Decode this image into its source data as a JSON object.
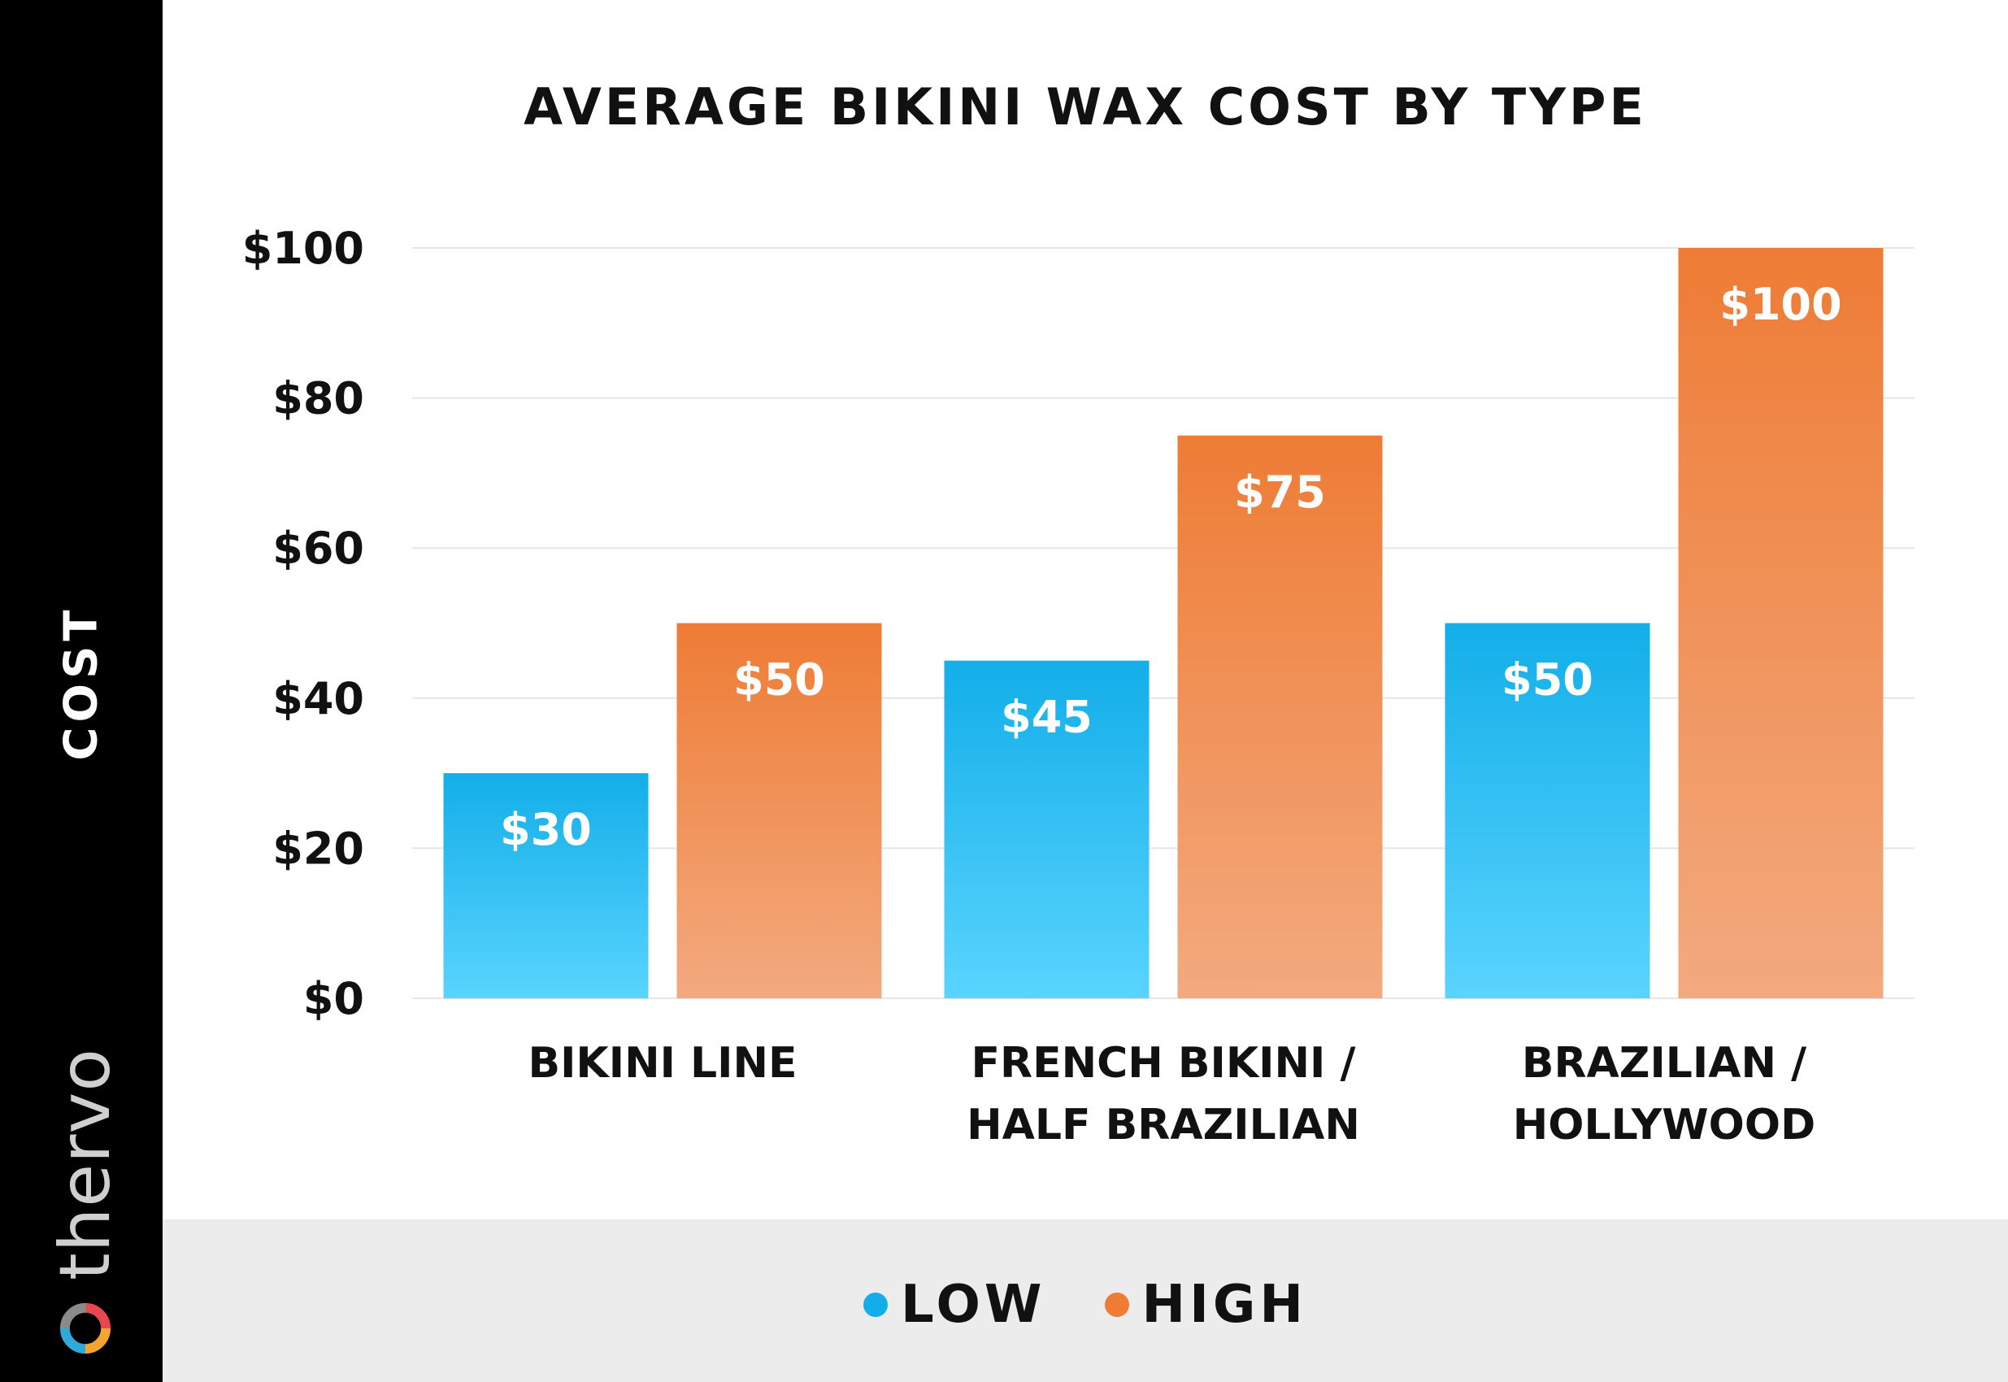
{
  "brand": {
    "name": "thervo",
    "logo_icon": "thervo-logo-icon"
  },
  "legend": {
    "items": [
      {
        "label": "LOW",
        "color": "#13aee9"
      },
      {
        "label": "HIGH",
        "color": "#ee7c35"
      }
    ]
  },
  "chart_data": {
    "type": "bar",
    "title": "AVERAGE BIKINI WAX COST BY TYPE",
    "xlabel": "",
    "ylabel": "COST",
    "categories": [
      [
        "BIKINI LINE"
      ],
      [
        "FRENCH BIKINI /",
        "HALF BRAZILIAN"
      ],
      [
        "BRAZILIAN /",
        "HOLLYWOOD"
      ]
    ],
    "series": [
      {
        "name": "LOW",
        "values": [
          30,
          45,
          50
        ],
        "labels": [
          "$30",
          "$45",
          "$50"
        ],
        "color": "#13aee9",
        "color_light": "#59d4fe"
      },
      {
        "name": "HIGH",
        "values": [
          50,
          75,
          100
        ],
        "labels": [
          "$50",
          "$75",
          "$100"
        ],
        "color": "#ee7c35",
        "color_light": "#f3aa7f"
      }
    ],
    "ylim": [
      0,
      100
    ],
    "yticks": [
      0,
      20,
      40,
      60,
      80,
      100
    ],
    "ytick_labels": [
      "$0",
      "$20",
      "$40",
      "$60",
      "$80",
      "$100"
    ],
    "grid": true,
    "legend_position": "bottom"
  }
}
